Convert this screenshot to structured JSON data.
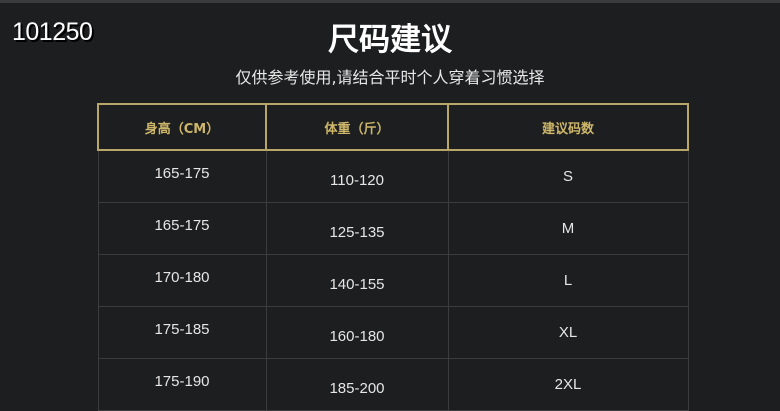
{
  "code": "101250",
  "title": "尺码建议",
  "subtitle": "仅供参考使用,请结合平时个人穿着习惯选择",
  "colors": {
    "background": "#1d1e20",
    "header_gold": "#cdb66a"
  },
  "table": {
    "headers": [
      "身高（CM）",
      "体重（斤）",
      "建议码数"
    ],
    "rows": [
      [
        "165-175",
        "110-120",
        "S"
      ],
      [
        "165-175",
        "125-135",
        "M"
      ],
      [
        "170-180",
        "140-155",
        "L"
      ],
      [
        "175-185",
        "160-180",
        "XL"
      ],
      [
        "175-190",
        "185-200",
        "2XL"
      ]
    ]
  }
}
